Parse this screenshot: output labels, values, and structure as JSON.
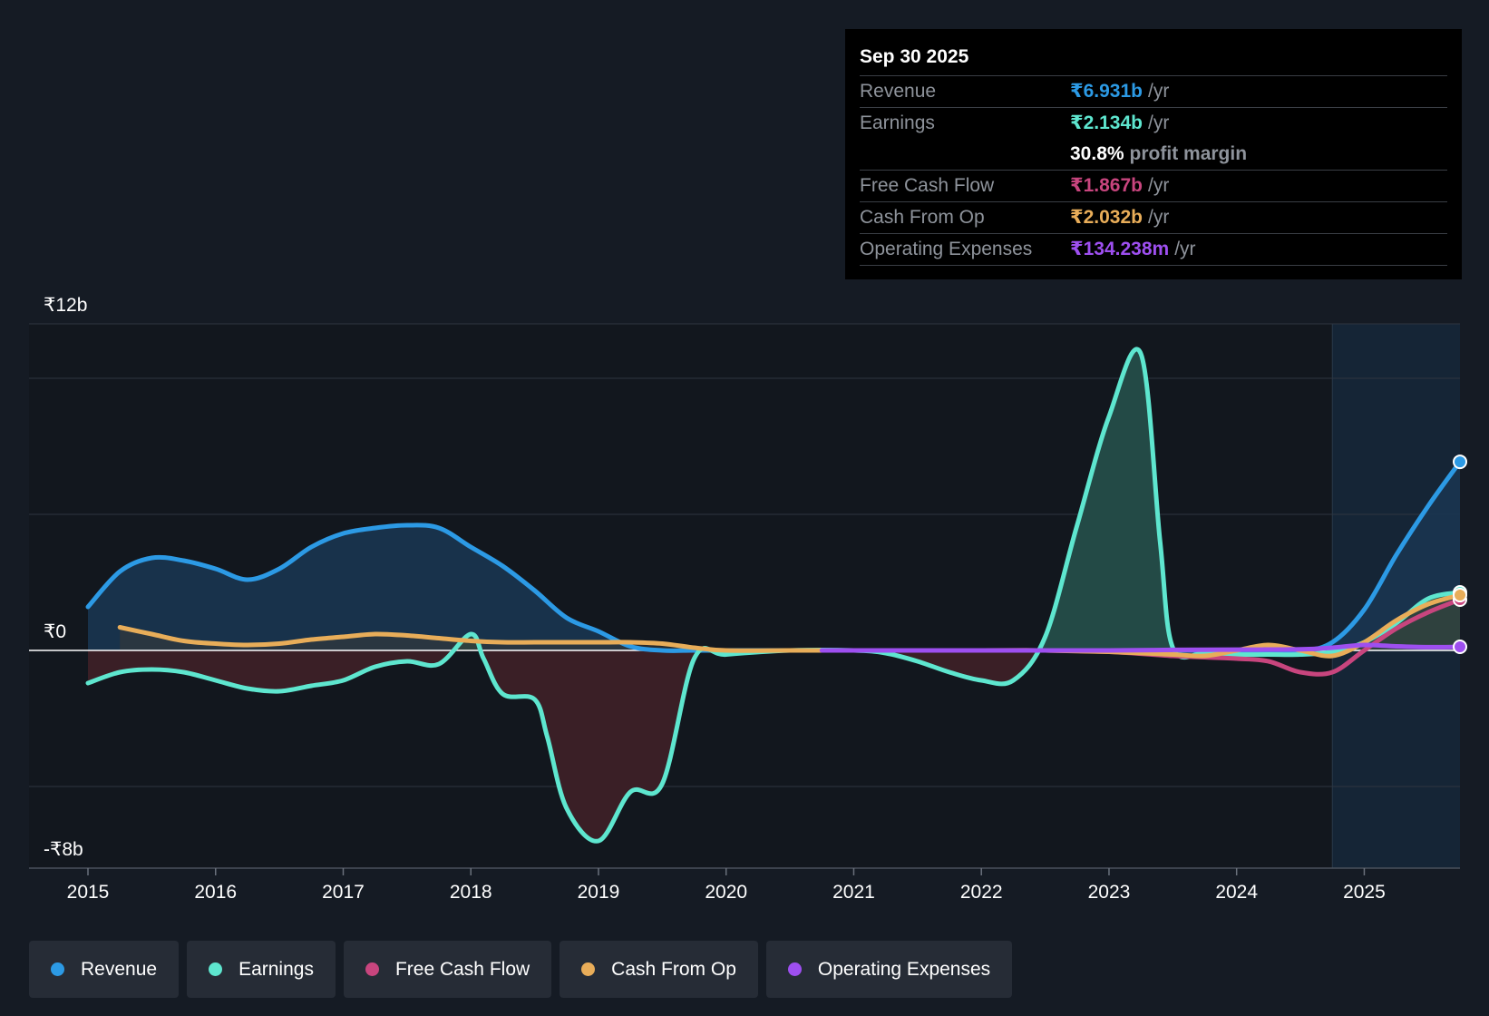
{
  "tooltip": {
    "date": "Sep 30 2025",
    "rows": {
      "revenue": {
        "label": "Revenue",
        "value": "₹6.931b",
        "unit": "/yr"
      },
      "earnings": {
        "label": "Earnings",
        "value": "₹2.134b",
        "unit": "/yr"
      },
      "margin": {
        "value": "30.8%",
        "text": "profit margin"
      },
      "fcf": {
        "label": "Free Cash Flow",
        "value": "₹1.867b",
        "unit": "/yr"
      },
      "cfo": {
        "label": "Cash From Op",
        "value": "₹2.032b",
        "unit": "/yr"
      },
      "opex": {
        "label": "Operating Expenses",
        "value": "₹134.238m",
        "unit": "/yr"
      }
    }
  },
  "legend": [
    {
      "label": "Revenue",
      "color": "#2c9ae5"
    },
    {
      "label": "Earnings",
      "color": "#5ee6cf"
    },
    {
      "label": "Free Cash Flow",
      "color": "#c8457e"
    },
    {
      "label": "Cash From Op",
      "color": "#e8ad59"
    },
    {
      "label": "Operating Expenses",
      "color": "#9e4ff0"
    }
  ],
  "chart_data": {
    "type": "area",
    "title": "",
    "xlabel": "",
    "ylabel": "",
    "ylim": [
      -8,
      12
    ],
    "xlim": [
      2015,
      2025.75
    ],
    "y_tick_labels": [
      "₹12b",
      "₹0",
      "-₹8b"
    ],
    "y_tick_values": [
      12,
      0,
      -8
    ],
    "gridlines": [
      12,
      10,
      5,
      -5
    ],
    "x_ticks": [
      2015,
      2016,
      2017,
      2018,
      2019,
      2020,
      2021,
      2022,
      2023,
      2024,
      2025
    ],
    "forecast_start": 2024.75,
    "series": [
      {
        "name": "Revenue",
        "color": "#2c9ae5",
        "fill": "#1a3550",
        "points": [
          [
            2015,
            1.6
          ],
          [
            2015.25,
            2.9
          ],
          [
            2015.5,
            3.4
          ],
          [
            2015.75,
            3.3
          ],
          [
            2016,
            3.0
          ],
          [
            2016.25,
            2.6
          ],
          [
            2016.5,
            3.0
          ],
          [
            2016.75,
            3.8
          ],
          [
            2017,
            4.3
          ],
          [
            2017.25,
            4.5
          ],
          [
            2017.5,
            4.6
          ],
          [
            2017.75,
            4.5
          ],
          [
            2018,
            3.8
          ],
          [
            2018.25,
            3.1
          ],
          [
            2018.5,
            2.2
          ],
          [
            2018.75,
            1.2
          ],
          [
            2019,
            0.7
          ],
          [
            2019.25,
            0.15
          ],
          [
            2019.5,
            0.0
          ],
          [
            2019.75,
            0.0
          ],
          [
            2020,
            0.0
          ],
          [
            2020.5,
            0.0
          ],
          [
            2021,
            0.0
          ],
          [
            2021.5,
            0.0
          ],
          [
            2022,
            0.0
          ],
          [
            2022.5,
            0.0
          ],
          [
            2023,
            0.0
          ],
          [
            2023.5,
            0.0
          ],
          [
            2024,
            0.0
          ],
          [
            2024.5,
            0.0
          ],
          [
            2024.75,
            0.3
          ],
          [
            2025,
            1.5
          ],
          [
            2025.25,
            3.5
          ],
          [
            2025.5,
            5.3
          ],
          [
            2025.75,
            6.931
          ]
        ]
      },
      {
        "name": "Earnings",
        "color": "#5ee6cf",
        "fill_pos": "#234a46",
        "fill_neg": "#3a1f26",
        "points": [
          [
            2015,
            -1.2
          ],
          [
            2015.25,
            -0.8
          ],
          [
            2015.5,
            -0.7
          ],
          [
            2015.75,
            -0.8
          ],
          [
            2016,
            -1.1
          ],
          [
            2016.25,
            -1.4
          ],
          [
            2016.5,
            -1.5
          ],
          [
            2016.75,
            -1.3
          ],
          [
            2017,
            -1.1
          ],
          [
            2017.25,
            -0.6
          ],
          [
            2017.5,
            -0.4
          ],
          [
            2017.75,
            -0.5
          ],
          [
            2018,
            0.6
          ],
          [
            2018.1,
            -0.3
          ],
          [
            2018.25,
            -1.6
          ],
          [
            2018.5,
            -1.8
          ],
          [
            2018.6,
            -3.2
          ],
          [
            2018.75,
            -5.8
          ],
          [
            2019,
            -7.0
          ],
          [
            2019.25,
            -5.2
          ],
          [
            2019.5,
            -4.9
          ],
          [
            2019.75,
            -0.3
          ],
          [
            2020,
            -0.15
          ],
          [
            2020.5,
            0.0
          ],
          [
            2021,
            0.0
          ],
          [
            2021.25,
            -0.1
          ],
          [
            2021.5,
            -0.4
          ],
          [
            2021.75,
            -0.8
          ],
          [
            2022,
            -1.1
          ],
          [
            2022.25,
            -1.1
          ],
          [
            2022.5,
            0.5
          ],
          [
            2022.75,
            4.6
          ],
          [
            2023,
            8.6
          ],
          [
            2023.25,
            10.9
          ],
          [
            2023.4,
            4.0
          ],
          [
            2023.5,
            0.1
          ],
          [
            2023.75,
            -0.1
          ],
          [
            2024,
            -0.15
          ],
          [
            2024.25,
            -0.15
          ],
          [
            2024.5,
            -0.15
          ],
          [
            2024.75,
            -0.05
          ],
          [
            2025,
            0.3
          ],
          [
            2025.25,
            1.0
          ],
          [
            2025.5,
            1.9
          ],
          [
            2025.75,
            2.134
          ]
        ]
      },
      {
        "name": "Free Cash Flow",
        "color": "#c8457e",
        "points": [
          [
            2021,
            0.0
          ],
          [
            2022,
            0.0
          ],
          [
            2022.5,
            0.0
          ],
          [
            2023,
            -0.05
          ],
          [
            2023.5,
            -0.2
          ],
          [
            2023.75,
            -0.25
          ],
          [
            2024,
            -0.3
          ],
          [
            2024.25,
            -0.4
          ],
          [
            2024.5,
            -0.8
          ],
          [
            2024.75,
            -0.8
          ],
          [
            2025,
            0.0
          ],
          [
            2025.25,
            0.8
          ],
          [
            2025.5,
            1.4
          ],
          [
            2025.75,
            1.867
          ]
        ]
      },
      {
        "name": "Cash From Op",
        "color": "#e8ad59",
        "points": [
          [
            2015.25,
            0.85
          ],
          [
            2015.5,
            0.6
          ],
          [
            2015.75,
            0.35
          ],
          [
            2016,
            0.25
          ],
          [
            2016.25,
            0.2
          ],
          [
            2016.5,
            0.25
          ],
          [
            2016.75,
            0.4
          ],
          [
            2017,
            0.5
          ],
          [
            2017.25,
            0.6
          ],
          [
            2017.5,
            0.55
          ],
          [
            2017.75,
            0.45
          ],
          [
            2018,
            0.35
          ],
          [
            2018.25,
            0.3
          ],
          [
            2018.5,
            0.3
          ],
          [
            2018.75,
            0.3
          ],
          [
            2019,
            0.3
          ],
          [
            2019.25,
            0.3
          ],
          [
            2019.5,
            0.25
          ],
          [
            2019.75,
            0.1
          ],
          [
            2020,
            0.0
          ],
          [
            2020.5,
            0.0
          ],
          [
            2020.75,
            0.0
          ],
          [
            2021,
            0.0
          ],
          [
            2022,
            0.0
          ],
          [
            2022.5,
            0.0
          ],
          [
            2023,
            -0.05
          ],
          [
            2023.5,
            -0.15
          ],
          [
            2023.75,
            -0.2
          ],
          [
            2024,
            0.0
          ],
          [
            2024.25,
            0.2
          ],
          [
            2024.5,
            0.0
          ],
          [
            2024.75,
            -0.2
          ],
          [
            2025,
            0.3
          ],
          [
            2025.25,
            1.1
          ],
          [
            2025.5,
            1.7
          ],
          [
            2025.75,
            2.032
          ]
        ]
      },
      {
        "name": "Operating Expenses",
        "color": "#9e4ff0",
        "points": [
          [
            2020.75,
            0.0
          ],
          [
            2021,
            0.0
          ],
          [
            2022,
            0.0
          ],
          [
            2023,
            0.0
          ],
          [
            2023.5,
            0.02
          ],
          [
            2024,
            0.03
          ],
          [
            2024.5,
            0.04
          ],
          [
            2024.75,
            0.1
          ],
          [
            2025,
            0.2
          ],
          [
            2025.25,
            0.15
          ],
          [
            2025.5,
            0.12
          ],
          [
            2025.75,
            0.134
          ]
        ]
      }
    ]
  }
}
